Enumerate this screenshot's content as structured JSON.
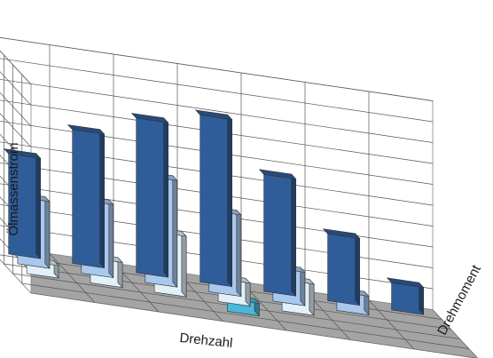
{
  "chart_data": {
    "type": "bar3d",
    "title": "",
    "xlabel": "Drehzahl",
    "ylabel": "Drehmoment",
    "zlabel": "Ölmassenstrom",
    "grid": true,
    "tick_labels": false,
    "zlim": [
      0,
      10
    ],
    "series": [
      {
        "row": 0,
        "color": "#2f5d99",
        "cells": [
          {
            "col": 0,
            "value": 4.8
          },
          {
            "col": 1,
            "value": 6.4
          },
          {
            "col": 2,
            "value": 7.4
          },
          {
            "col": 3,
            "value": 8.0
          },
          {
            "col": 4,
            "value": 5.6
          },
          {
            "col": 5,
            "value": 3.2
          },
          {
            "col": 6,
            "value": 1.3
          }
        ]
      },
      {
        "row": 1,
        "color": "#a8c8ee",
        "cells": [
          {
            "col": 0,
            "value": 3.2
          },
          {
            "col": 1,
            "value": 3.5
          },
          {
            "col": 2,
            "value": 5.1
          },
          {
            "col": 3,
            "value": 3.9
          },
          {
            "col": 4,
            "value": 1.6
          },
          {
            "col": 5,
            "value": 0.9
          }
        ]
      },
      {
        "row": 2,
        "color": "#e2f1f9",
        "cells": [
          {
            "col": 0,
            "value": 0.6
          },
          {
            "col": 1,
            "value": 1.2
          },
          {
            "col": 2,
            "value": 2.9
          },
          {
            "col": 3,
            "value": 1.1
          },
          {
            "col": 4,
            "value": 1.5
          }
        ]
      },
      {
        "row": 3,
        "color": "#4ab8d8",
        "cells": [
          {
            "col": 3,
            "value": 0.6
          }
        ]
      }
    ]
  }
}
